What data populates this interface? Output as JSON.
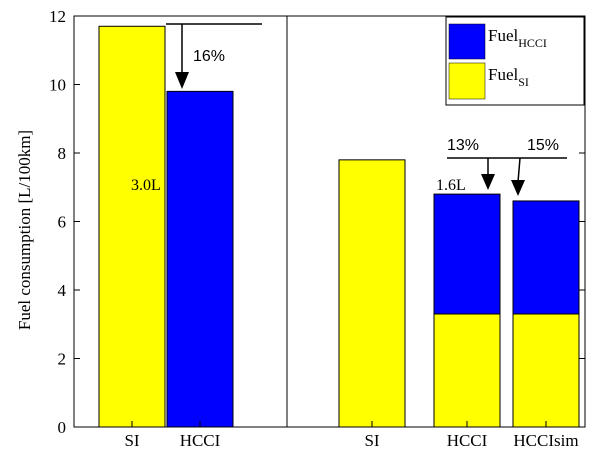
{
  "chart_data": {
    "type": "bar",
    "ylabel": "Fuel consumption [L/100km]",
    "ylim": [
      0,
      12
    ],
    "yticks": [
      "0",
      "2",
      "4",
      "6",
      "8",
      "10",
      "12"
    ],
    "grid": false,
    "legend_position": "top-right",
    "categories": [
      "SI",
      "HCCI",
      "SI",
      "HCCI",
      "HCCIsim"
    ],
    "series": [
      {
        "name": "Fuel_SI",
        "color": "#ffff00",
        "values": [
          11.7,
          0,
          7.8,
          3.3,
          3.3
        ]
      },
      {
        "name": "Fuel_HCCI",
        "color": "#0000ff",
        "values": [
          0,
          9.8,
          0,
          3.5,
          3.3
        ]
      }
    ],
    "totals": [
      11.7,
      9.8,
      7.8,
      6.8,
      6.6
    ],
    "legend": {
      "hcci": {
        "base": "Fuel",
        "sub": "HCCI"
      },
      "si": {
        "base": "Fuel",
        "sub": "SI"
      }
    },
    "annotations": {
      "pct1": "16%",
      "pct2": "13%",
      "pct3": "15%",
      "label1": "3.0L",
      "label2": "1.6L"
    }
  }
}
